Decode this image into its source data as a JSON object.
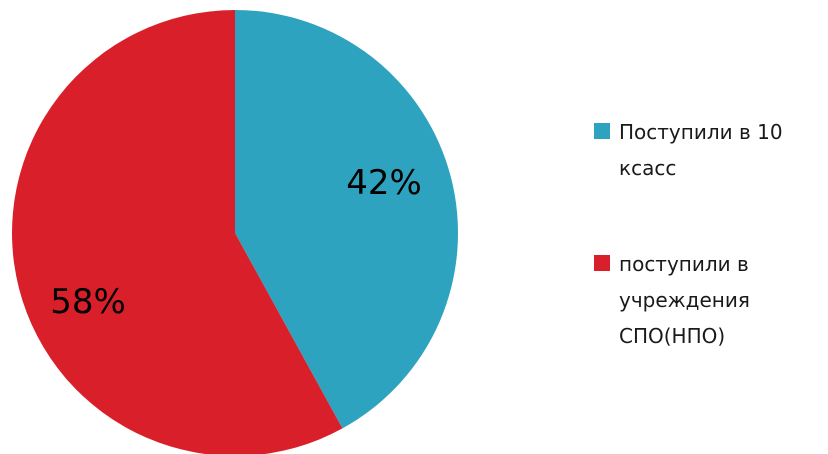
{
  "chart_data": {
    "type": "pie",
    "categories": [
      "Поступили в 10 ксасс",
      "поступили в учреждения СПО(НПО)"
    ],
    "values": [
      42,
      58
    ],
    "data_labels": [
      "42%",
      "58%"
    ],
    "colors": [
      "#2ea3bf",
      "#d9202a"
    ],
    "legend_position": "right"
  },
  "legend": {
    "items": [
      {
        "label": "Поступили в 10 ксасс",
        "color": "#2ea3bf"
      },
      {
        "label": "поступили в учреждения СПО(НПО)",
        "color": "#d9202a"
      }
    ]
  }
}
